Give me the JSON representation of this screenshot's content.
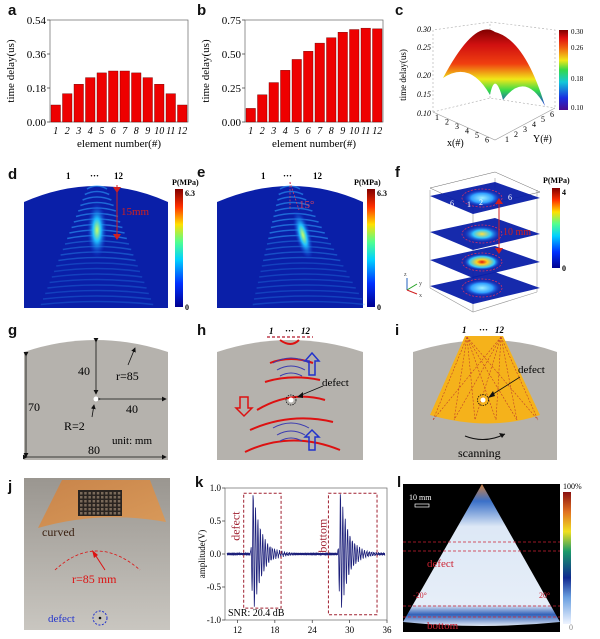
{
  "panel_labels": [
    "a",
    "b",
    "c",
    "d",
    "e",
    "f",
    "g",
    "h",
    "i",
    "j",
    "k",
    "l"
  ],
  "chart_data": [
    {
      "id": "a",
      "type": "bar",
      "title": "",
      "xlabel": "element number(#)",
      "ylabel": "time delay(us)",
      "categories": [
        "1",
        "2",
        "3",
        "4",
        "5",
        "6",
        "7",
        "8",
        "9",
        "10",
        "11",
        "12"
      ],
      "values": [
        0.09,
        0.15,
        0.2,
        0.235,
        0.26,
        0.27,
        0.27,
        0.26,
        0.235,
        0.2,
        0.15,
        0.09
      ],
      "ylim": [
        0,
        0.54
      ],
      "yticks": [
        "0.00",
        "0.18",
        "0.36",
        "0.54"
      ],
      "bar_color": "#ee0000"
    },
    {
      "id": "b",
      "type": "bar",
      "title": "",
      "xlabel": "element number(#)",
      "ylabel": "time delay(us)",
      "categories": [
        "1",
        "2",
        "3",
        "4",
        "5",
        "6",
        "7",
        "8",
        "9",
        "10",
        "11",
        "12"
      ],
      "values": [
        0.1,
        0.2,
        0.29,
        0.38,
        0.46,
        0.52,
        0.58,
        0.62,
        0.66,
        0.68,
        0.69,
        0.685
      ],
      "ylim": [
        0,
        0.75
      ],
      "yticks": [
        "0.00",
        "0.25",
        "0.50",
        "0.75"
      ],
      "bar_color": "#ee0000"
    },
    {
      "id": "c",
      "type": "heatmap",
      "subtype": "3d-surface",
      "zlabel": "time delay(us)",
      "xlabel": "x(#)",
      "ylabel": "Y(#)",
      "zlim": [
        0.1,
        0.3
      ],
      "zticks": [
        "0.10",
        "0.15",
        "0.20",
        "0.25",
        "0.30"
      ],
      "xticks": [
        "1",
        "2",
        "3",
        "4",
        "5",
        "6"
      ],
      "yticks": [
        "1",
        "2",
        "3",
        "4",
        "5",
        "6"
      ],
      "colorbar_ticks": [
        "0.30",
        "0.26",
        "0.18",
        "0.10"
      ]
    },
    {
      "id": "k",
      "type": "line",
      "xlabel": "",
      "ylabel": "amplitude(V)",
      "xlim": [
        10,
        36
      ],
      "ylim": [
        -1.0,
        1.0
      ],
      "xticks": [
        "12",
        "18",
        "24",
        "30",
        "36"
      ],
      "yticks": [
        "1.0",
        "0.5",
        "0.0",
        "-0.5",
        "-1.0"
      ],
      "series": [
        {
          "name": "defect echo",
          "center": 14.5,
          "peak": 0.95,
          "trough": -0.8
        },
        {
          "name": "bottom echo",
          "center": 28.5,
          "peak": 0.95,
          "trough": -0.9
        }
      ],
      "annotations": [
        "defect",
        "bottom",
        "SNR: 20.4 dB"
      ]
    }
  ],
  "panel_d": {
    "numbers": [
      "1",
      "···",
      "12"
    ],
    "colorbar_title": "P(MPa)",
    "cb_max": "6.3",
    "cb_min": "0",
    "annotation": "15mm"
  },
  "panel_e": {
    "numbers": [
      "1",
      "···",
      "12"
    ],
    "colorbar_title": "P(MPa)",
    "cb_max": "6.3",
    "cb_min": "0",
    "annotation": "15°"
  },
  "panel_f": {
    "colorbar_title": "P(MPa)",
    "cb_max": "4",
    "cb_min": "0",
    "annotation": "10 mm",
    "element_labels": [
      "6",
      "1",
      "2",
      "6"
    ],
    "axes": [
      "z",
      "y",
      "x"
    ]
  },
  "panel_g": {
    "dims": [
      "40",
      "r=85",
      "70",
      "40",
      "R=2",
      "unit: mm",
      "80"
    ]
  },
  "panel_h": {
    "numbers": [
      "1",
      "···",
      "12"
    ],
    "label": "defect"
  },
  "panel_i": {
    "numbers": [
      "1",
      "···",
      "12"
    ],
    "label": "defect",
    "scan_label": "scanning"
  },
  "panel_j": {
    "labels": [
      "curved",
      "r=85 mm",
      "defect"
    ]
  },
  "panel_l": {
    "scale": "10 mm",
    "cb_max": "100%",
    "cb_min": "0",
    "angle_left": "-20°",
    "angle_right": "20°",
    "labels": [
      "defect",
      "bottom"
    ]
  },
  "colors": {
    "bar": "#ee0000",
    "annotation_red": "#c8102e",
    "defect_blue": "#2233cc",
    "gray_block": "#b5b2ad",
    "orange_fan": "#f5b21b",
    "signal": "#1c1f7a"
  }
}
